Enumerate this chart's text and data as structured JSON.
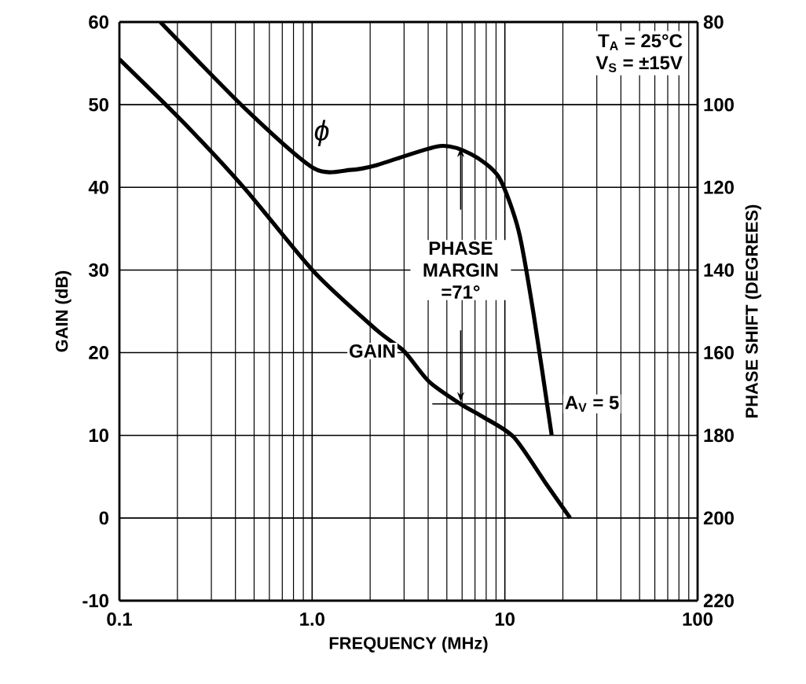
{
  "chart_data": {
    "type": "line",
    "xlabel": "FREQUENCY (MHz)",
    "ylabel": "GAIN (dB)",
    "y2label": "PHASE SHIFT (DEGREES)",
    "log": "x",
    "grid": true,
    "xlim": [
      0.1,
      100
    ],
    "xticks": [
      0.1,
      {
        "value": 1,
        "label": "1.0"
      },
      10,
      100
    ],
    "ylim": [
      -10,
      60
    ],
    "yticks": [
      -10,
      0,
      10,
      20,
      30,
      40,
      50,
      60
    ],
    "y2lim": [
      220,
      80
    ],
    "y2ticks": [
      80,
      100,
      120,
      140,
      160,
      180,
      200,
      220
    ],
    "series": [
      {
        "name": "GAIN",
        "color": "#000000",
        "x": [
          0.1,
          0.216,
          0.449,
          1.02,
          2.17,
          2.99,
          4.04,
          5.88,
          7.6,
          11.1,
          16.2,
          21.8
        ],
        "values": [
          55.5,
          47.8,
          39.8,
          29.8,
          22.7,
          20.2,
          16.5,
          13.8,
          12.3,
          9.8,
          4.3,
          0
        ]
      },
      {
        "name": "ϕ",
        "color": "#000000",
        "axis": "y2",
        "x": [
          0.163,
          0.457,
          1.02,
          1.58,
          2.17,
          4.6,
          6.7,
          9.3,
          11.8,
          14.1,
          17.5
        ],
        "values": [
          80,
          101.3,
          115.4,
          115.8,
          114.6,
          110,
          112,
          117.5,
          130.6,
          150.7,
          180
        ]
      }
    ],
    "annotations": [
      "T$_{A}$ = 25°C",
      "V$_{S}$ = ±15V",
      "PHASE MARGIN =71°",
      "A$_{V}$ = 5"
    ]
  }
}
